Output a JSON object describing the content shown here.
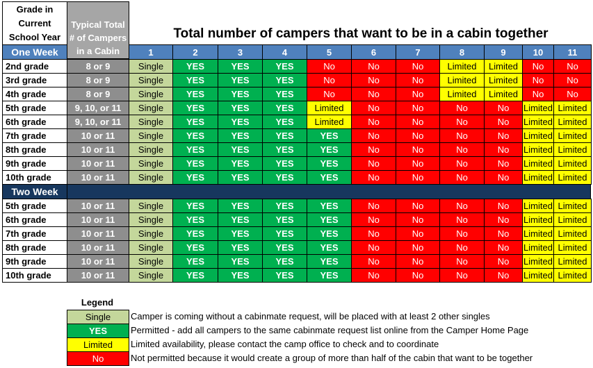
{
  "title": "Total number of campers that want to be in a cabin together",
  "header": {
    "grade_col": [
      "Grade in",
      "Current",
      "School Year"
    ],
    "typical_col": [
      "Typical Total",
      "# of Campers",
      "in a Cabin"
    ]
  },
  "columns": [
    "1",
    "2",
    "3",
    "4",
    "5",
    "6",
    "7",
    "8",
    "9",
    "10",
    "11"
  ],
  "sections": [
    {
      "name": "One Week",
      "rows": [
        {
          "grade": "2nd grade",
          "typical": "8 or 9",
          "cells": [
            "Single",
            "YES",
            "YES",
            "YES",
            "No",
            "No",
            "No",
            "Limited",
            "Limited",
            "No",
            "No"
          ]
        },
        {
          "grade": "3rd grade",
          "typical": "8 or 9",
          "cells": [
            "Single",
            "YES",
            "YES",
            "YES",
            "No",
            "No",
            "No",
            "Limited",
            "Limited",
            "No",
            "No"
          ]
        },
        {
          "grade": "4th grade",
          "typical": "8 or 9",
          "cells": [
            "Single",
            "YES",
            "YES",
            "YES",
            "No",
            "No",
            "No",
            "Limited",
            "Limited",
            "No",
            "No"
          ]
        },
        {
          "grade": "5th grade",
          "typical": "9, 10, or 11",
          "cells": [
            "Single",
            "YES",
            "YES",
            "YES",
            "Limited",
            "No",
            "No",
            "No",
            "No",
            "Limited",
            "Limited"
          ]
        },
        {
          "grade": "6th grade",
          "typical": "9, 10, or 11",
          "cells": [
            "Single",
            "YES",
            "YES",
            "YES",
            "Limited",
            "No",
            "No",
            "No",
            "No",
            "Limited",
            "Limited"
          ]
        },
        {
          "grade": "7th grade",
          "typical": "10 or 11",
          "cells": [
            "Single",
            "YES",
            "YES",
            "YES",
            "YES",
            "No",
            "No",
            "No",
            "No",
            "Limited",
            "Limited"
          ]
        },
        {
          "grade": "8th grade",
          "typical": "10 or 11",
          "cells": [
            "Single",
            "YES",
            "YES",
            "YES",
            "YES",
            "No",
            "No",
            "No",
            "No",
            "Limited",
            "Limited"
          ]
        },
        {
          "grade": "9th grade",
          "typical": "10 or 11",
          "cells": [
            "Single",
            "YES",
            "YES",
            "YES",
            "YES",
            "No",
            "No",
            "No",
            "No",
            "Limited",
            "Limited"
          ]
        },
        {
          "grade": "10th grade",
          "typical": "10 or 11",
          "cells": [
            "Single",
            "YES",
            "YES",
            "YES",
            "YES",
            "No",
            "No",
            "No",
            "No",
            "Limited",
            "Limited"
          ]
        }
      ]
    },
    {
      "name": "Two Week",
      "rows": [
        {
          "grade": "5th grade",
          "typical": "10 or 11",
          "cells": [
            "Single",
            "YES",
            "YES",
            "YES",
            "YES",
            "No",
            "No",
            "No",
            "No",
            "Limited",
            "Limited"
          ]
        },
        {
          "grade": "6th grade",
          "typical": "10 or 11",
          "cells": [
            "Single",
            "YES",
            "YES",
            "YES",
            "YES",
            "No",
            "No",
            "No",
            "No",
            "Limited",
            "Limited"
          ]
        },
        {
          "grade": "7th grade",
          "typical": "10 or 11",
          "cells": [
            "Single",
            "YES",
            "YES",
            "YES",
            "YES",
            "No",
            "No",
            "No",
            "No",
            "Limited",
            "Limited"
          ]
        },
        {
          "grade": "8th grade",
          "typical": "10 or 11",
          "cells": [
            "Single",
            "YES",
            "YES",
            "YES",
            "YES",
            "No",
            "No",
            "No",
            "No",
            "Limited",
            "Limited"
          ]
        },
        {
          "grade": "9th grade",
          "typical": "10 or 11",
          "cells": [
            "Single",
            "YES",
            "YES",
            "YES",
            "YES",
            "No",
            "No",
            "No",
            "No",
            "Limited",
            "Limited"
          ]
        },
        {
          "grade": "10th grade",
          "typical": "10 or 11",
          "cells": [
            "Single",
            "YES",
            "YES",
            "YES",
            "YES",
            "No",
            "No",
            "No",
            "No",
            "Limited",
            "Limited"
          ]
        }
      ]
    }
  ],
  "legend": {
    "title": "Legend",
    "items": [
      {
        "key": "Single",
        "text": "Camper is coming without a cabinmate request, will be placed with at least 2 other singles"
      },
      {
        "key": "YES",
        "text": "Permitted - add all campers to the same cabinmate request list online from the Camper Home Page"
      },
      {
        "key": "Limited",
        "text": "Limited availability, please contact the camp office to check and to coordinate"
      },
      {
        "key": "No",
        "text": "Not permitted because it would create a group of more than half of the cabin that want to be together"
      }
    ]
  },
  "colors": {
    "single": "#c4d79b",
    "yes": "#00b050",
    "limited": "#ffff00",
    "no": "#ff0000",
    "header_blue": "#4f81bd",
    "section_navy": "#17375e",
    "typical_gray": "#8e8e8e"
  }
}
